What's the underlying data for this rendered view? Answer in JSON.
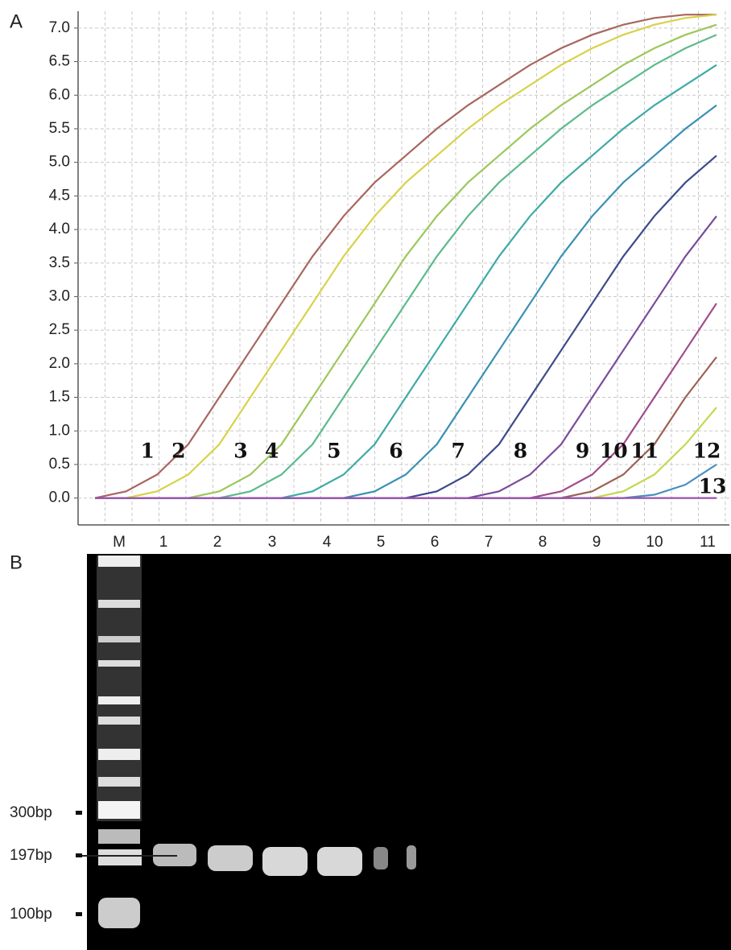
{
  "panel_labels": [
    "A",
    "B"
  ],
  "chart_data": {
    "type": "line",
    "x": [
      0,
      2,
      4,
      6,
      8,
      10,
      12,
      14,
      16,
      18,
      20,
      22,
      24,
      26,
      28,
      30,
      32,
      34,
      36,
      38,
      40
    ],
    "xlim": [
      0,
      40
    ],
    "ylim": [
      -0.4,
      7.25
    ],
    "yticks": [
      {
        "value": 0,
        "label": "0.0"
      },
      {
        "value": 0.5,
        "label": "0.5"
      },
      {
        "value": 1,
        "label": "1.0"
      },
      {
        "value": 1.5,
        "label": "1.5"
      },
      {
        "value": 2,
        "label": "2.0"
      },
      {
        "value": 2.5,
        "label": "2.5"
      },
      {
        "value": 3,
        "label": "3.0"
      },
      {
        "value": 3.5,
        "label": "3.5"
      },
      {
        "value": 4,
        "label": "4.0"
      },
      {
        "value": 4.5,
        "label": "4.5"
      },
      {
        "value": 5,
        "label": "5.0"
      },
      {
        "value": 5.5,
        "label": "5.5"
      },
      {
        "value": 6,
        "label": "6.0"
      },
      {
        "value": 6.5,
        "label": "6.5"
      },
      {
        "value": 7,
        "label": "7.0"
      }
    ],
    "grid": true,
    "series": [
      {
        "name": "1",
        "color": "#a8665e",
        "values": [
          0,
          0.1,
          0.35,
          0.8,
          1.5,
          2.2,
          2.9,
          3.6,
          4.2,
          4.7,
          5.1,
          5.5,
          5.85,
          6.15,
          6.45,
          6.7,
          6.9,
          7.05,
          7.15,
          7.2,
          7.2
        ]
      },
      {
        "name": "2",
        "color": "#d8d24a",
        "values": [
          0,
          0,
          0.1,
          0.35,
          0.8,
          1.5,
          2.2,
          2.9,
          3.6,
          4.2,
          4.7,
          5.1,
          5.5,
          5.85,
          6.15,
          6.45,
          6.7,
          6.9,
          7.05,
          7.15,
          7.2
        ]
      },
      {
        "name": "3",
        "color": "#9cc85a",
        "values": [
          0,
          0,
          0,
          0,
          0.1,
          0.35,
          0.8,
          1.5,
          2.2,
          2.9,
          3.6,
          4.2,
          4.7,
          5.1,
          5.5,
          5.85,
          6.15,
          6.45,
          6.7,
          6.9,
          7.05
        ]
      },
      {
        "name": "4",
        "color": "#5cba8c",
        "values": [
          0,
          0,
          0,
          0,
          0,
          0.1,
          0.35,
          0.8,
          1.5,
          2.2,
          2.9,
          3.6,
          4.2,
          4.7,
          5.1,
          5.5,
          5.85,
          6.15,
          6.45,
          6.7,
          6.9
        ]
      },
      {
        "name": "5",
        "color": "#3eaaa6",
        "values": [
          0,
          0,
          0,
          0,
          0,
          0,
          0,
          0.1,
          0.35,
          0.8,
          1.5,
          2.2,
          2.9,
          3.6,
          4.2,
          4.7,
          5.1,
          5.5,
          5.85,
          6.15,
          6.45
        ]
      },
      {
        "name": "6",
        "color": "#3a90b4",
        "values": [
          0,
          0,
          0,
          0,
          0,
          0,
          0,
          0,
          0,
          0.1,
          0.35,
          0.8,
          1.5,
          2.2,
          2.9,
          3.6,
          4.2,
          4.7,
          5.1,
          5.5,
          5.85
        ]
      },
      {
        "name": "7",
        "color": "#3c4a8c",
        "values": [
          0,
          0,
          0,
          0,
          0,
          0,
          0,
          0,
          0,
          0,
          0,
          0.1,
          0.35,
          0.8,
          1.5,
          2.2,
          2.9,
          3.6,
          4.2,
          4.7,
          5.1
        ]
      },
      {
        "name": "8",
        "color": "#7a4c9c",
        "values": [
          0,
          0,
          0,
          0,
          0,
          0,
          0,
          0,
          0,
          0,
          0,
          0,
          0,
          0.1,
          0.35,
          0.8,
          1.5,
          2.2,
          2.9,
          3.6,
          4.2
        ]
      },
      {
        "name": "9",
        "color": "#a04c8a",
        "values": [
          0,
          0,
          0,
          0,
          0,
          0,
          0,
          0,
          0,
          0,
          0,
          0,
          0,
          0,
          0,
          0.1,
          0.35,
          0.8,
          1.5,
          2.2,
          2.9
        ]
      },
      {
        "name": "10",
        "color": "#9a6254",
        "values": [
          0,
          0,
          0,
          0,
          0,
          0,
          0,
          0,
          0,
          0,
          0,
          0,
          0,
          0,
          0,
          0,
          0.1,
          0.35,
          0.8,
          1.5,
          2.1
        ]
      },
      {
        "name": "11",
        "color": "#c2d850",
        "values": [
          0,
          0,
          0,
          0,
          0,
          0,
          0,
          0,
          0,
          0,
          0,
          0,
          0,
          0,
          0,
          0,
          0,
          0.1,
          0.35,
          0.8,
          1.35
        ]
      },
      {
        "name": "12",
        "color": "#4a8ec0",
        "values": [
          0,
          0,
          0,
          0,
          0,
          0,
          0,
          0,
          0,
          0,
          0,
          0,
          0,
          0,
          0,
          0,
          0,
          0,
          0.05,
          0.2,
          0.5
        ]
      },
      {
        "name": "13",
        "color": "#9a50b0",
        "values": [
          0,
          0,
          0,
          0,
          0,
          0,
          0,
          0,
          0,
          0,
          0,
          0,
          0,
          0,
          0,
          0,
          0,
          0,
          0,
          0,
          0
        ]
      }
    ]
  },
  "gel": {
    "lanes": [
      "M",
      "1",
      "2",
      "3",
      "4",
      "5",
      "6",
      "7",
      "8",
      "9",
      "10",
      "11"
    ],
    "markers": [
      "300bp",
      "197bp",
      "100bp"
    ]
  }
}
